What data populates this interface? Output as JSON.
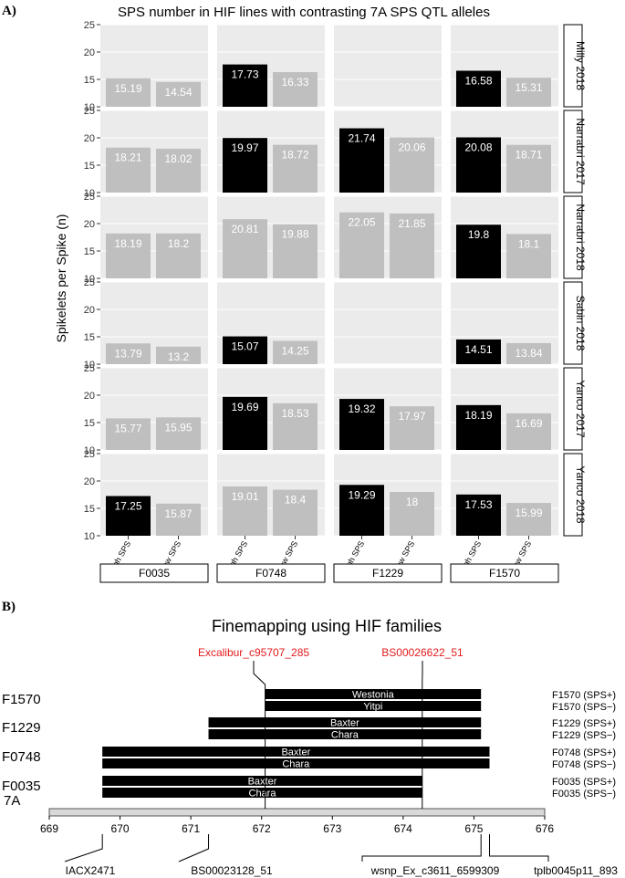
{
  "colors": {
    "high": "#000000",
    "low": "#bfbfbf",
    "marker_red": "#e31a1c",
    "panel_bg": "#ebebeb"
  },
  "panel_a": {
    "tag": "A)"
  },
  "panel_b": {
    "tag": "B)"
  },
  "chart_data": [
    {
      "type": "bar",
      "title": "SPS number in HIF lines with contrasting 7A SPS QTL alleles",
      "ylabel": "Spikelets per Spike (n)",
      "ylim": [
        10,
        25
      ],
      "yticks": [
        10,
        15,
        20,
        25
      ],
      "families": [
        "F0035",
        "F0748",
        "F1229",
        "F1570"
      ],
      "categories": [
        "high SPS",
        "low SPS"
      ],
      "environments": [
        {
          "name": "Milly 2018",
          "values": {
            "F0035": [
              15.19,
              14.54
            ],
            "F0748": [
              17.73,
              16.33
            ],
            "F1229": null,
            "F1570": [
              16.58,
              15.31
            ]
          },
          "highlight": {
            "F0035": false,
            "F0748": true,
            "F1229": false,
            "F1570": true
          }
        },
        {
          "name": "Narrabri 2017",
          "values": {
            "F0035": [
              18.21,
              18.02
            ],
            "F0748": [
              19.97,
              18.72
            ],
            "F1229": [
              21.74,
              20.06
            ],
            "F1570": [
              20.08,
              18.71
            ]
          },
          "highlight": {
            "F0035": false,
            "F0748": true,
            "F1229": true,
            "F1570": true
          }
        },
        {
          "name": "Narrabri 2018",
          "values": {
            "F0035": [
              18.19,
              18.2
            ],
            "F0748": [
              20.81,
              19.88
            ],
            "F1229": [
              22.05,
              21.85
            ],
            "F1570": [
              19.8,
              18.1
            ]
          },
          "highlight": {
            "F0035": false,
            "F0748": false,
            "F1229": false,
            "F1570": true
          }
        },
        {
          "name": "Sabin 2018",
          "values": {
            "F0035": [
              13.79,
              13.2
            ],
            "F0748": [
              15.07,
              14.25
            ],
            "F1229": null,
            "F1570": [
              14.51,
              13.84
            ]
          },
          "highlight": {
            "F0035": false,
            "F0748": true,
            "F1229": false,
            "F1570": true
          }
        },
        {
          "name": "Yanco 2017",
          "values": {
            "F0035": [
              15.77,
              15.95
            ],
            "F0748": [
              19.69,
              18.53
            ],
            "F1229": [
              19.32,
              17.97
            ],
            "F1570": [
              18.19,
              16.69
            ]
          },
          "highlight": {
            "F0035": false,
            "F0748": true,
            "F1229": true,
            "F1570": true
          }
        },
        {
          "name": "Yanco 2018",
          "values": {
            "F0035": [
              17.25,
              15.87
            ],
            "F0748": [
              19.01,
              18.4
            ],
            "F1229": [
              19.29,
              18
            ],
            "F1570": [
              17.53,
              15.99
            ]
          },
          "highlight": {
            "F0035": true,
            "F0748": false,
            "F1229": true,
            "F1570": true
          }
        }
      ]
    },
    {
      "type": "segments",
      "title": "Finemapping using HIF families",
      "chromosome": "7A",
      "xlim": [
        669,
        676
      ],
      "ticks": [
        669,
        670,
        671,
        672,
        673,
        674,
        675,
        676
      ],
      "families": [
        {
          "name": "F1570",
          "segments": [
            {
              "label": "Westonia",
              "start": 672.05,
              "end": 675.1,
              "right_label": "F1570 (SPS+)"
            },
            {
              "label": "Yitpi",
              "start": 672.05,
              "end": 675.1,
              "right_label": "F1570 (SPS−)"
            }
          ]
        },
        {
          "name": "F1229",
          "segments": [
            {
              "label": "Baxter",
              "start": 671.25,
              "end": 675.1,
              "right_label": "F1229 (SPS+)"
            },
            {
              "label": "Chara",
              "start": 671.25,
              "end": 675.1,
              "right_label": "F1229 (SPS−)"
            }
          ]
        },
        {
          "name": "F0748",
          "segments": [
            {
              "label": "Baxter",
              "start": 669.75,
              "end": 675.22,
              "right_label": "F0748 (SPS+)"
            },
            {
              "label": "Chara",
              "start": 669.75,
              "end": 675.22,
              "right_label": "F0748 (SPS−)"
            }
          ]
        },
        {
          "name": "F0035",
          "segments": [
            {
              "label": "Baxter",
              "start": 669.75,
              "end": 674.27,
              "right_label": "F0035 (SPS+)"
            },
            {
              "label": "Chara",
              "start": 669.75,
              "end": 674.27,
              "right_label": "F0035 (SPS−)"
            }
          ]
        }
      ],
      "qtl_markers": [
        {
          "label": "Excalibur_c95707_285",
          "position": 672.05
        },
        {
          "label": "BS00026622_51",
          "position": 674.27
        }
      ],
      "flanking_markers": [
        {
          "label": "IACX2471",
          "position": 669.75
        },
        {
          "label": "BS00023128_51",
          "position": 671.25
        },
        {
          "label": "wsnp_Ex_c3611_6599309",
          "position": 675.1
        },
        {
          "label": "tplb0045p11_893",
          "position": 675.22
        }
      ]
    }
  ]
}
